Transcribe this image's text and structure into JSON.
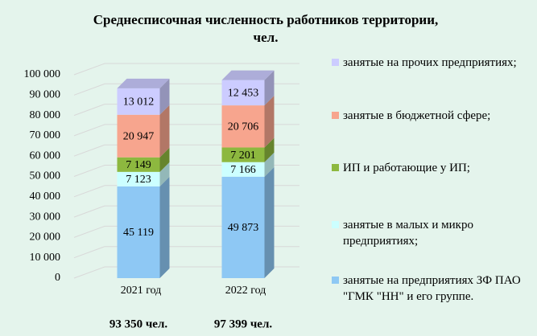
{
  "chart_data": {
    "type": "bar3d-stacked",
    "title": "Среднесписочная численность работников территории, чел.",
    "categories": [
      "2021 год",
      "2022 год"
    ],
    "totals": [
      "93 350 чел.",
      "97 399 чел."
    ],
    "ylim": [
      0,
      100000
    ],
    "yticks": [
      0,
      {
        "value": 10000,
        "label": "10 000"
      },
      {
        "value": 20000,
        "label": "20 000"
      },
      {
        "value": 30000,
        "label": "30 000"
      },
      {
        "value": 40000,
        "label": "40 000"
      },
      {
        "value": 50000,
        "label": "50 000"
      },
      {
        "value": 60000,
        "label": "60 000"
      },
      {
        "value": 70000,
        "label": "70 000"
      },
      {
        "value": 80000,
        "label": "80 000"
      },
      {
        "value": 90000,
        "label": "90 000"
      },
      {
        "value": 100000,
        "label": "100 000"
      }
    ],
    "grid": true,
    "legend": "right",
    "series": [
      {
        "name": "занятые на предприятиях ЗФ ПАО \"ГМК \"НН\" и его группе.",
        "color": "#8ec8f4",
        "values": [
          45119,
          49873
        ],
        "value_labels": [
          "45 119",
          "49 873"
        ]
      },
      {
        "name": "занятые в малых и микро предприятиях;",
        "color": "#ccffff",
        "values": [
          7123,
          7166
        ],
        "value_labels": [
          "7 123",
          "7 166"
        ]
      },
      {
        "name": "ИП и работающие у ИП;",
        "color": "#8db83f",
        "values": [
          7149,
          7201
        ],
        "value_labels": [
          "7 149",
          "7 201"
        ]
      },
      {
        "name": "занятые в бюджетной сфере;",
        "color": "#f7a58e",
        "values": [
          20947,
          20706
        ],
        "value_labels": [
          "20 947",
          "20 706"
        ]
      },
      {
        "name": "занятые на прочих предприятиях;",
        "color": "#ccccff",
        "values": [
          13012,
          12453
        ],
        "value_labels": [
          "13 012",
          "12 453"
        ]
      }
    ]
  }
}
